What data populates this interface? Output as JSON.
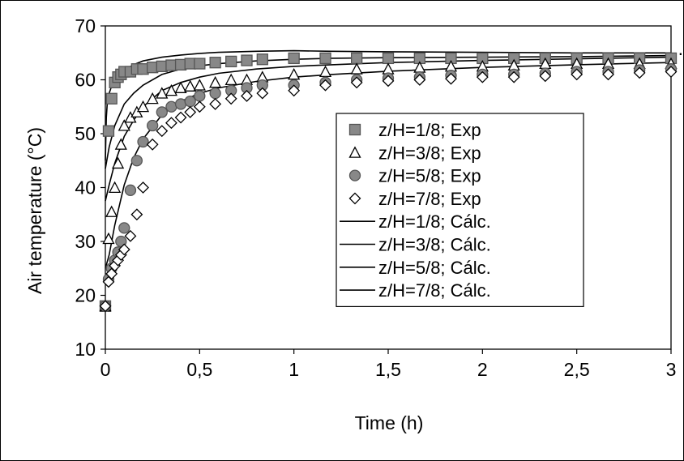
{
  "chart_data": {
    "type": "scatter",
    "xlabel": "Time (h)",
    "ylabel": "Air temperature (°C)",
    "ylabel_trailing_mark": ".",
    "xlim": [
      0,
      3
    ],
    "ylim": [
      10,
      70
    ],
    "x_ticks": [
      0,
      0.5,
      1,
      1.5,
      2,
      2.5,
      3
    ],
    "x_tick_labels": [
      "0",
      "0,5",
      "1",
      "1,5",
      "2",
      "2,5",
      "3"
    ],
    "y_ticks": [
      10,
      20,
      30,
      40,
      50,
      60,
      70
    ],
    "y_tick_labels": [
      "10",
      "20",
      "30",
      "40",
      "50",
      "60",
      "70"
    ],
    "grid": "none",
    "legend": "center-right",
    "series": [
      {
        "name": "z/H=1/8; Exp",
        "kind": "markers",
        "marker": "square",
        "fill": "#888888",
        "x": [
          0,
          0.017,
          0.033,
          0.05,
          0.067,
          0.083,
          0.1,
          0.133,
          0.167,
          0.2,
          0.25,
          0.3,
          0.35,
          0.4,
          0.45,
          0.5,
          0.583,
          0.667,
          0.75,
          0.833,
          1,
          1.167,
          1.333,
          1.5,
          1.667,
          1.833,
          2,
          2.167,
          2.333,
          2.5,
          2.667,
          2.833,
          3
        ],
        "y": [
          18,
          50.5,
          56.5,
          59.5,
          60.5,
          61,
          61.5,
          61.5,
          62,
          62,
          62.3,
          62.5,
          62.7,
          62.8,
          63,
          63,
          63.2,
          63.4,
          63.6,
          63.8,
          64,
          64,
          64,
          64,
          64,
          64,
          64,
          64,
          64,
          64,
          64,
          64,
          64
        ]
      },
      {
        "name": "z/H=3/8; Exp",
        "kind": "markers",
        "marker": "triangle",
        "fill": "#ffffff",
        "x": [
          0,
          0.017,
          0.033,
          0.05,
          0.067,
          0.083,
          0.1,
          0.133,
          0.167,
          0.2,
          0.25,
          0.3,
          0.35,
          0.4,
          0.45,
          0.5,
          0.583,
          0.667,
          0.75,
          0.833,
          1,
          1.167,
          1.333,
          1.5,
          1.667,
          1.833,
          2,
          2.167,
          2.333,
          2.5,
          2.667,
          2.833,
          3
        ],
        "y": [
          18,
          30.5,
          35.5,
          40,
          44.5,
          48,
          51.5,
          53,
          54,
          55,
          56.5,
          57.5,
          58,
          58.5,
          58.8,
          59,
          59.5,
          60,
          60,
          60.5,
          61,
          61.5,
          62,
          62,
          62.3,
          62.5,
          62.5,
          62.7,
          63,
          63,
          63,
          63,
          63
        ]
      },
      {
        "name": "z/H=5/8; Exp",
        "kind": "markers",
        "marker": "circle",
        "fill": "#888888",
        "x": [
          0,
          0.017,
          0.033,
          0.05,
          0.067,
          0.083,
          0.1,
          0.133,
          0.167,
          0.2,
          0.25,
          0.3,
          0.35,
          0.4,
          0.45,
          0.5,
          0.583,
          0.667,
          0.75,
          0.833,
          1,
          1.167,
          1.333,
          1.5,
          1.667,
          1.833,
          2,
          2.167,
          2.333,
          2.5,
          2.667,
          2.833,
          3
        ],
        "y": [
          18,
          23,
          25,
          26.5,
          28,
          30,
          32.5,
          39.5,
          45,
          48.5,
          51.5,
          54,
          55,
          55.5,
          56,
          57,
          57.5,
          58,
          58.5,
          59,
          59,
          59.5,
          60,
          60.3,
          60.5,
          60.8,
          61,
          61,
          61.2,
          61.5,
          61.5,
          61.8,
          62
        ]
      },
      {
        "name": "z/H=7/8; Exp",
        "kind": "markers",
        "marker": "diamond",
        "fill": "#ffffff",
        "x": [
          0,
          0.017,
          0.033,
          0.05,
          0.067,
          0.083,
          0.1,
          0.133,
          0.167,
          0.2,
          0.25,
          0.3,
          0.35,
          0.4,
          0.45,
          0.5,
          0.583,
          0.667,
          0.75,
          0.833,
          1,
          1.167,
          1.333,
          1.5,
          1.667,
          1.833,
          2,
          2.167,
          2.333,
          2.5,
          2.667,
          2.833,
          3
        ],
        "y": [
          18,
          22.5,
          24,
          25.5,
          26.5,
          27.5,
          28.5,
          31,
          35,
          40,
          48,
          50.5,
          52,
          53,
          54,
          55,
          55.5,
          56.5,
          57,
          57.5,
          58,
          59,
          59.5,
          59.8,
          60,
          60.2,
          60.5,
          60.5,
          60.7,
          61,
          61,
          61.3,
          61.5
        ]
      },
      {
        "name": "z/H=1/8; Cálc.",
        "kind": "line",
        "x": [
          0,
          0.005,
          0.01,
          0.02,
          0.03,
          0.05,
          0.075,
          0.1,
          0.15,
          0.2,
          0.3,
          0.4,
          0.5,
          0.6,
          0.8,
          1,
          1.2,
          1.5,
          2,
          2.5,
          3
        ],
        "y": [
          45,
          53,
          55.5,
          57.5,
          58.5,
          60,
          61,
          61.8,
          62.8,
          63.5,
          64.2,
          64.6,
          64.9,
          65.1,
          65.3,
          65.4,
          65.3,
          65.2,
          65.1,
          65,
          65
        ]
      },
      {
        "name": "z/H=3/8; Cálc.",
        "kind": "line",
        "x": [
          0,
          0.02,
          0.05,
          0.1,
          0.15,
          0.2,
          0.3,
          0.4,
          0.5,
          0.6,
          0.8,
          1,
          1.2,
          1.5,
          2,
          2.5,
          3
        ],
        "y": [
          43.5,
          47.5,
          51.5,
          55.5,
          57.5,
          59,
          61,
          62,
          62.6,
          63,
          63.5,
          63.8,
          64,
          64.1,
          64.2,
          64.3,
          64.5
        ]
      },
      {
        "name": "z/H=5/8; Cálc.",
        "kind": "line",
        "x": [
          0,
          0.02,
          0.05,
          0.1,
          0.15,
          0.2,
          0.3,
          0.4,
          0.5,
          0.6,
          0.8,
          1,
          1.2,
          1.5,
          2,
          2.5,
          3
        ],
        "y": [
          37.5,
          40.5,
          44.5,
          49.5,
          52.5,
          55,
          58,
          59.5,
          60.5,
          61.2,
          62,
          62.5,
          62.8,
          63.2,
          63.6,
          63.9,
          64.2
        ]
      },
      {
        "name": "z/H=7/8; Cálc.",
        "kind": "line",
        "x": [
          0,
          0.02,
          0.05,
          0.1,
          0.15,
          0.2,
          0.3,
          0.4,
          0.5,
          0.6,
          0.8,
          1,
          1.2,
          1.5,
          2,
          2.5,
          3
        ],
        "y": [
          25,
          27.5,
          33,
          40.5,
          45.5,
          49,
          53.5,
          56,
          57.5,
          58.5,
          59.7,
          60.5,
          61,
          61.6,
          62.3,
          62.8,
          63.2
        ]
      }
    ]
  }
}
